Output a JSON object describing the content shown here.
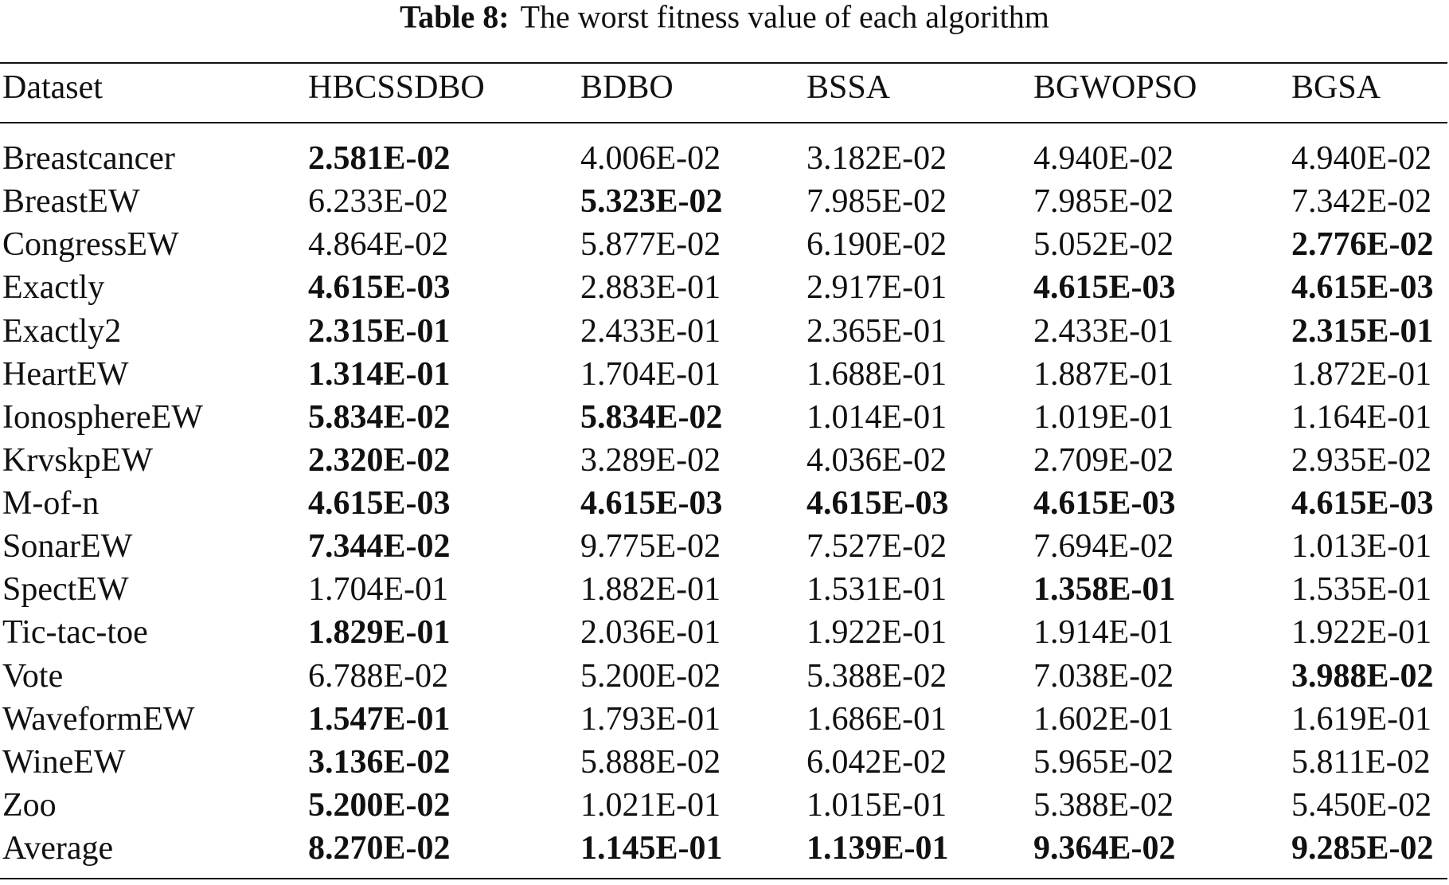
{
  "caption": {
    "label": "Table 8:",
    "text": "The worst fitness value of each algorithm"
  },
  "table": {
    "header": [
      "Dataset",
      "HBCSSDBO",
      "BDBO",
      "BSSA",
      "BGWOPSO",
      "BGSA"
    ],
    "rows": [
      [
        "Breastcancer",
        "2.581E-02",
        "4.006E-02",
        "3.182E-02",
        "4.940E-02",
        "4.940E-02"
      ],
      [
        "BreastEW",
        "6.233E-02",
        "5.323E-02",
        "7.985E-02",
        "7.985E-02",
        "7.342E-02"
      ],
      [
        "CongressEW",
        "4.864E-02",
        "5.877E-02",
        "6.190E-02",
        "5.052E-02",
        "2.776E-02"
      ],
      [
        "Exactly",
        "4.615E-03",
        "2.883E-01",
        "2.917E-01",
        "4.615E-03",
        "4.615E-03"
      ],
      [
        "Exactly2",
        "2.315E-01",
        "2.433E-01",
        "2.365E-01",
        "2.433E-01",
        "2.315E-01"
      ],
      [
        "HeartEW",
        "1.314E-01",
        "1.704E-01",
        "1.688E-01",
        "1.887E-01",
        "1.872E-01"
      ],
      [
        "IonosphereEW",
        "5.834E-02",
        "5.834E-02",
        "1.014E-01",
        "1.019E-01",
        "1.164E-01"
      ],
      [
        "KrvskpEW",
        "2.320E-02",
        "3.289E-02",
        "4.036E-02",
        "2.709E-02",
        "2.935E-02"
      ],
      [
        "M-of-n",
        "4.615E-03",
        "4.615E-03",
        "4.615E-03",
        "4.615E-03",
        "4.615E-03"
      ],
      [
        "SonarEW",
        "7.344E-02",
        "9.775E-02",
        "7.527E-02",
        "7.694E-02",
        "1.013E-01"
      ],
      [
        "SpectEW",
        "1.704E-01",
        "1.882E-01",
        "1.531E-01",
        "1.358E-01",
        "1.535E-01"
      ],
      [
        "Tic-tac-toe",
        "1.829E-01",
        "2.036E-01",
        "1.922E-01",
        "1.914E-01",
        "1.922E-01"
      ],
      [
        "Vote",
        "6.788E-02",
        "5.200E-02",
        "5.388E-02",
        "7.038E-02",
        "3.988E-02"
      ],
      [
        "WaveformEW",
        "1.547E-01",
        "1.793E-01",
        "1.686E-01",
        "1.602E-01",
        "1.619E-01"
      ],
      [
        "WineEW",
        "3.136E-02",
        "5.888E-02",
        "6.042E-02",
        "5.965E-02",
        "5.811E-02"
      ],
      [
        "Zoo",
        "5.200E-02",
        "1.021E-01",
        "1.015E-01",
        "5.388E-02",
        "5.450E-02"
      ],
      [
        "Average",
        "8.270E-02",
        "1.145E-01",
        "1.139E-01",
        "9.364E-02",
        "9.285E-02"
      ]
    ],
    "bold": [
      [
        false,
        true,
        false,
        false,
        false,
        false
      ],
      [
        false,
        false,
        true,
        false,
        false,
        false
      ],
      [
        false,
        false,
        false,
        false,
        false,
        true
      ],
      [
        false,
        true,
        false,
        false,
        true,
        true
      ],
      [
        false,
        true,
        false,
        false,
        false,
        true
      ],
      [
        false,
        true,
        false,
        false,
        false,
        false
      ],
      [
        false,
        true,
        true,
        false,
        false,
        false
      ],
      [
        false,
        true,
        false,
        false,
        false,
        false
      ],
      [
        false,
        true,
        true,
        true,
        true,
        true
      ],
      [
        false,
        true,
        false,
        false,
        false,
        false
      ],
      [
        false,
        false,
        false,
        false,
        true,
        false
      ],
      [
        false,
        true,
        false,
        false,
        false,
        false
      ],
      [
        false,
        false,
        false,
        false,
        false,
        true
      ],
      [
        false,
        true,
        false,
        false,
        false,
        false
      ],
      [
        false,
        true,
        false,
        false,
        false,
        false
      ],
      [
        false,
        true,
        false,
        false,
        false,
        false
      ],
      [
        false,
        true,
        true,
        true,
        true,
        true
      ]
    ]
  }
}
